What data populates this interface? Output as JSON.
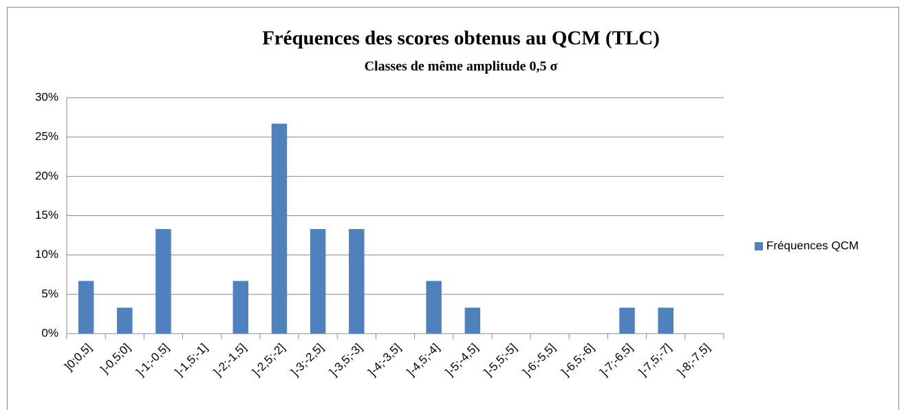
{
  "chart_data": {
    "type": "bar",
    "title": "Fréquences des scores obtenus au QCM (TLC)",
    "subtitle": "Classes de même amplitude 0,5 σ",
    "categories": [
      "]0;0,5]",
      "]-0,5;0]",
      "]-1;-0,5]",
      "]-1,5;-1]",
      "]-2;-1,5]",
      "]-2,5;-2]",
      "]-3;-2,5]",
      "]-3,5;-3]",
      "]-4;-3,5]",
      "]-4,5;-4]",
      "]-5;-4,5]",
      "]-5,5;-5]",
      "]-6;-5,5]",
      "]-6,5;-6]",
      "]-7;-6,5]",
      "]-7,5;-7]",
      "]-8;-7,5]"
    ],
    "series": [
      {
        "name": "Fréquences QCM",
        "color": "#4f81bd",
        "values": [
          6.7,
          3.3,
          13.3,
          0,
          6.7,
          26.7,
          13.3,
          13.3,
          0,
          6.7,
          3.3,
          0,
          0,
          0,
          3.3,
          3.3,
          0
        ]
      }
    ],
    "ylim": [
      0,
      30
    ],
    "yticks": [
      {
        "value": 0,
        "label": "0%"
      },
      {
        "value": 5,
        "label": "5%"
      },
      {
        "value": 10,
        "label": "10%"
      },
      {
        "value": 15,
        "label": "15%"
      },
      {
        "value": 20,
        "label": "20%"
      },
      {
        "value": 25,
        "label": "25%"
      },
      {
        "value": 30,
        "label": "30%"
      }
    ],
    "grid": true,
    "legend": "right"
  }
}
